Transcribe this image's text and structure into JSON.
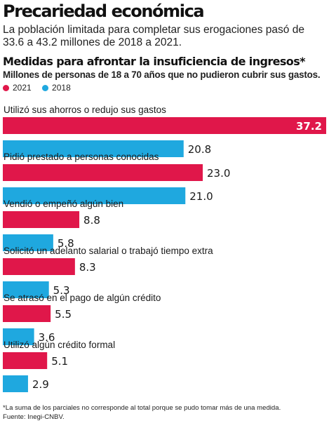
{
  "header": {
    "title": "Precariedad económica",
    "subtitle": "La población limitada para completar sus erogaciones pasó de 33.6 a 43.2 millones de 2018 a 2021."
  },
  "chart_data": {
    "type": "bar",
    "orientation": "horizontal",
    "title": "Medidas para afrontar la insuficiencia de ingresos*",
    "subtitle": "Millones de personas de 18 a 70 años que no pudieron cubrir sus gastos.",
    "categories": [
      "Utilizó sus ahorros o redujo sus gastos",
      "Pidió prestado a personas conocidas",
      "Vendió o empeñó algún bien",
      "Solicitó un adelanto salarial o trabajó tiempo extra",
      "Se atrasó en el pago de algún crédito",
      "Utilizó algún crédito formal"
    ],
    "series": [
      {
        "name": "2021",
        "color": "#e0174a",
        "values": [
          37.2,
          23.0,
          8.8,
          8.3,
          5.5,
          5.1
        ]
      },
      {
        "name": "2018",
        "color": "#1fa8df",
        "values": [
          20.8,
          21.0,
          5.8,
          5.3,
          3.6,
          2.9
        ]
      }
    ],
    "value_format": "one-decimal",
    "xlim": [
      0,
      37.2
    ],
    "legend_position": "top-left",
    "grid": false
  },
  "footnote": "*La suma de los parciales no corresponde al total porque se pudo tomar más de una medida.",
  "source": "Fuente: Inegi-CNBV."
}
